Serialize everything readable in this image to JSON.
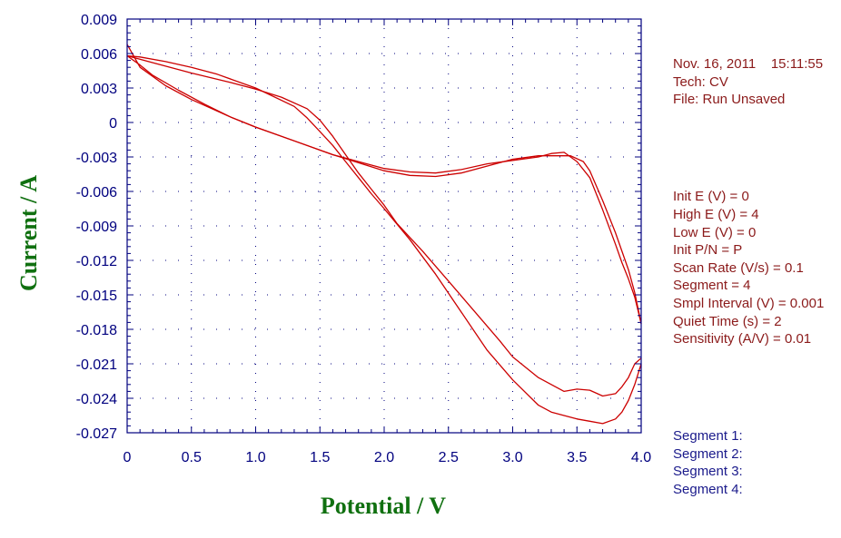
{
  "chart_data": {
    "type": "line",
    "xlabel": "Potential / V",
    "ylabel": "Current / A",
    "xlim": [
      0,
      4.0
    ],
    "ylim": [
      -0.027,
      0.009
    ],
    "xticks": [
      "0",
      "0.5",
      "1.0",
      "1.5",
      "2.0",
      "2.5",
      "3.0",
      "3.5",
      "4.0"
    ],
    "yticks": [
      "0.009",
      "0.006",
      "0.003",
      "0",
      "-0.003",
      "-0.006",
      "-0.009",
      "-0.012",
      "-0.015",
      "-0.018",
      "-0.021",
      "-0.024",
      "-0.027"
    ],
    "grid": true,
    "line_color": "#cc0000",
    "series": [
      {
        "x": [
          0.0,
          0.2,
          0.5,
          0.8,
          1.0,
          1.2,
          1.4,
          1.5,
          1.6,
          1.7,
          1.8,
          1.9,
          2.0,
          2.1,
          2.3,
          2.5,
          2.7,
          2.9,
          3.0,
          3.2,
          3.4,
          3.5,
          3.6,
          3.7,
          3.8,
          3.85,
          3.9,
          3.95,
          4.0
        ],
        "y": [
          0.0058,
          0.0052,
          0.0043,
          0.0035,
          0.0029,
          0.0022,
          0.0012,
          0.0002,
          -0.0012,
          -0.0028,
          -0.0044,
          -0.0058,
          -0.0072,
          -0.0088,
          -0.0112,
          -0.0138,
          -0.0164,
          -0.019,
          -0.0204,
          -0.0222,
          -0.0234,
          -0.0232,
          -0.0233,
          -0.0238,
          -0.0236,
          -0.023,
          -0.0222,
          -0.021,
          -0.0205
        ]
      },
      {
        "x": [
          4.0,
          3.95,
          3.9,
          3.85,
          3.8,
          3.7,
          3.6,
          3.5,
          3.4,
          3.3,
          3.2,
          3.0,
          2.8,
          2.6,
          2.4,
          2.2,
          2.0,
          1.9,
          1.8,
          1.7,
          1.6,
          1.5,
          1.4,
          1.3,
          1.0,
          0.7,
          0.5,
          0.3,
          0.1,
          0.0
        ],
        "y": [
          -0.021,
          -0.0228,
          -0.0242,
          -0.0252,
          -0.0258,
          -0.0262,
          -0.026,
          -0.0258,
          -0.0255,
          -0.0252,
          -0.0246,
          -0.0224,
          -0.0198,
          -0.0165,
          -0.0132,
          -0.0102,
          -0.0075,
          -0.0062,
          -0.0048,
          -0.0034,
          -0.002,
          -0.0008,
          0.0004,
          0.0014,
          0.003,
          0.0042,
          0.0048,
          0.0053,
          0.0057,
          0.0058
        ]
      },
      {
        "x": [
          0.0,
          0.1,
          0.3,
          0.5,
          0.8,
          1.0,
          1.3,
          1.6,
          2.0,
          2.2,
          2.4,
          2.6,
          2.8,
          3.0,
          3.2,
          3.3,
          3.45,
          3.55,
          3.6,
          3.7,
          3.8,
          3.85,
          3.9,
          3.95,
          4.0
        ],
        "y": [
          0.0068,
          0.0048,
          0.0032,
          0.002,
          0.0005,
          -0.0004,
          -0.0016,
          -0.0028,
          -0.0042,
          -0.0046,
          -0.0047,
          -0.0044,
          -0.0038,
          -0.0032,
          -0.0029,
          -0.0029,
          -0.0029,
          -0.0034,
          -0.0042,
          -0.0068,
          -0.0096,
          -0.0112,
          -0.0128,
          -0.0148,
          -0.0175
        ]
      },
      {
        "x": [
          4.0,
          3.95,
          3.9,
          3.85,
          3.8,
          3.7,
          3.6,
          3.5,
          3.4,
          3.3,
          3.2,
          3.0,
          2.8,
          2.6,
          2.4,
          2.2,
          2.0,
          1.8,
          1.6,
          1.4,
          1.2,
          1.0,
          0.8,
          0.6,
          0.4,
          0.2,
          0.1,
          0.0
        ],
        "y": [
          -0.0175,
          -0.0152,
          -0.0136,
          -0.0122,
          -0.0106,
          -0.0076,
          -0.0048,
          -0.0034,
          -0.0026,
          -0.0027,
          -0.003,
          -0.0033,
          -0.0036,
          -0.0041,
          -0.0044,
          -0.0043,
          -0.004,
          -0.0034,
          -0.0028,
          -0.002,
          -0.0012,
          -0.0004,
          0.0005,
          0.0016,
          0.0028,
          0.0041,
          0.005,
          0.0058
        ]
      }
    ]
  },
  "info": {
    "header_lines": [
      "Nov. 16, 2011    15:11:55",
      "Tech: CV",
      "File: Run Unsaved"
    ],
    "param_lines": [
      "Init E (V) = 0",
      "High E (V) = 4",
      "Low E (V) = 0",
      "Init P/N = P",
      "Scan Rate (V/s) = 0.1",
      "Segment = 4",
      "Smpl Interval (V) = 0.001",
      "Quiet Time (s) = 2",
      "Sensitivity (A/V) = 0.01"
    ],
    "segment_lines": [
      "Segment 1:",
      "Segment 2:",
      "Segment 3:",
      "Segment 4:"
    ],
    "param_color": "#8b1a1a",
    "segment_color": "#1a1a8b"
  }
}
